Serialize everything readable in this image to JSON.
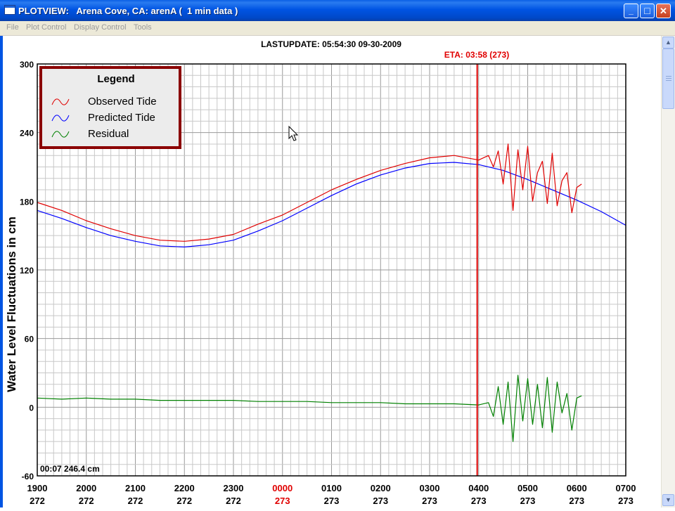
{
  "window": {
    "title": "PLOTVIEW:   Arena Cove, CA: arenA (  1 min data )",
    "buttons": {
      "minimize": "_",
      "maximize": "□",
      "close": "✕"
    }
  },
  "menu": [
    "File",
    "Plot Control",
    "Display Control",
    "Tools"
  ],
  "header": {
    "last_update": "LASTUPDATE: 05:54:30  09-30-2009",
    "eta": "ETA: 03:58 (273)"
  },
  "colors": {
    "observed": "#e00000",
    "predicted": "#0000ff",
    "residual": "#008000",
    "eta_line": "#e00000",
    "legend_border": "#8b0000"
  },
  "cursor_readout": "00:07 246.4 cm",
  "chart_data": {
    "type": "line",
    "ylabel": "Water Level Fluctuations in cm",
    "ylim": [
      -60,
      300
    ],
    "yticks": [
      "300",
      "240",
      "180",
      "120",
      "60",
      "0",
      "-60"
    ],
    "xlim": [
      0,
      12
    ],
    "xticks": [
      {
        "time": "1900",
        "day": "272"
      },
      {
        "time": "2000",
        "day": "272"
      },
      {
        "time": "2100",
        "day": "272"
      },
      {
        "time": "2200",
        "day": "272"
      },
      {
        "time": "2300",
        "day": "272"
      },
      {
        "time": "0000",
        "day": "273"
      },
      {
        "time": "0100",
        "day": "273"
      },
      {
        "time": "0200",
        "day": "273"
      },
      {
        "time": "0300",
        "day": "273"
      },
      {
        "time": "0400",
        "day": "273"
      },
      {
        "time": "0500",
        "day": "273"
      },
      {
        "time": "0600",
        "day": "273"
      },
      {
        "time": "0700",
        "day": "273"
      }
    ],
    "highlight_tick": "0000",
    "eta_x": 8.97,
    "legend": {
      "title": "Legend",
      "entries": [
        "Observed Tide",
        "Predicted Tide",
        "Residual"
      ],
      "placement": "top-left"
    },
    "series": [
      {
        "name": "Predicted Tide",
        "x": [
          0,
          0.5,
          1,
          1.5,
          2,
          2.5,
          3,
          3.5,
          4,
          4.5,
          5,
          5.5,
          6,
          6.5,
          7,
          7.5,
          8,
          8.5,
          9,
          9.5,
          10,
          10.5,
          11,
          11.5,
          12
        ],
        "values": [
          172,
          165,
          157,
          150,
          145,
          141,
          140,
          142,
          146,
          154,
          163,
          174,
          185,
          195,
          203,
          209,
          213,
          214,
          212,
          207,
          199,
          190,
          181,
          171,
          159
        ]
      },
      {
        "name": "Observed Tide",
        "x": [
          0,
          0.5,
          1,
          1.5,
          2,
          2.5,
          3,
          3.5,
          4,
          4.5,
          5,
          5.5,
          6,
          6.5,
          7,
          7.5,
          8,
          8.5,
          9,
          9.2,
          9.3,
          9.4,
          9.5,
          9.6,
          9.7,
          9.8,
          9.9,
          10,
          10.1,
          10.2,
          10.3,
          10.4,
          10.5,
          10.6,
          10.7,
          10.8,
          10.9,
          11.0,
          11.1
        ],
        "values": [
          179,
          172,
          163,
          156,
          150,
          146,
          145,
          147,
          151,
          160,
          168,
          179,
          190,
          199,
          207,
          213,
          218,
          220,
          216,
          220,
          210,
          224,
          195,
          230,
          172,
          225,
          190,
          228,
          180,
          205,
          215,
          178,
          222,
          176,
          198,
          205,
          170,
          192,
          195
        ]
      },
      {
        "name": "Residual",
        "x": [
          0,
          0.5,
          1,
          1.5,
          2,
          2.5,
          3,
          3.5,
          4,
          4.5,
          5,
          5.5,
          6,
          6.5,
          7,
          7.5,
          8,
          8.5,
          9,
          9.2,
          9.3,
          9.4,
          9.5,
          9.6,
          9.7,
          9.8,
          9.9,
          10,
          10.1,
          10.2,
          10.3,
          10.4,
          10.5,
          10.6,
          10.7,
          10.8,
          10.9,
          11.0,
          11.1
        ],
        "values": [
          8,
          7,
          8,
          7,
          7,
          6,
          6,
          6,
          6,
          5,
          5,
          5,
          4,
          4,
          4,
          3,
          3,
          3,
          2,
          4,
          -8,
          18,
          -15,
          22,
          -30,
          28,
          -12,
          25,
          -15,
          20,
          -18,
          26,
          -22,
          22,
          -5,
          12,
          -20,
          8,
          10
        ]
      }
    ]
  }
}
